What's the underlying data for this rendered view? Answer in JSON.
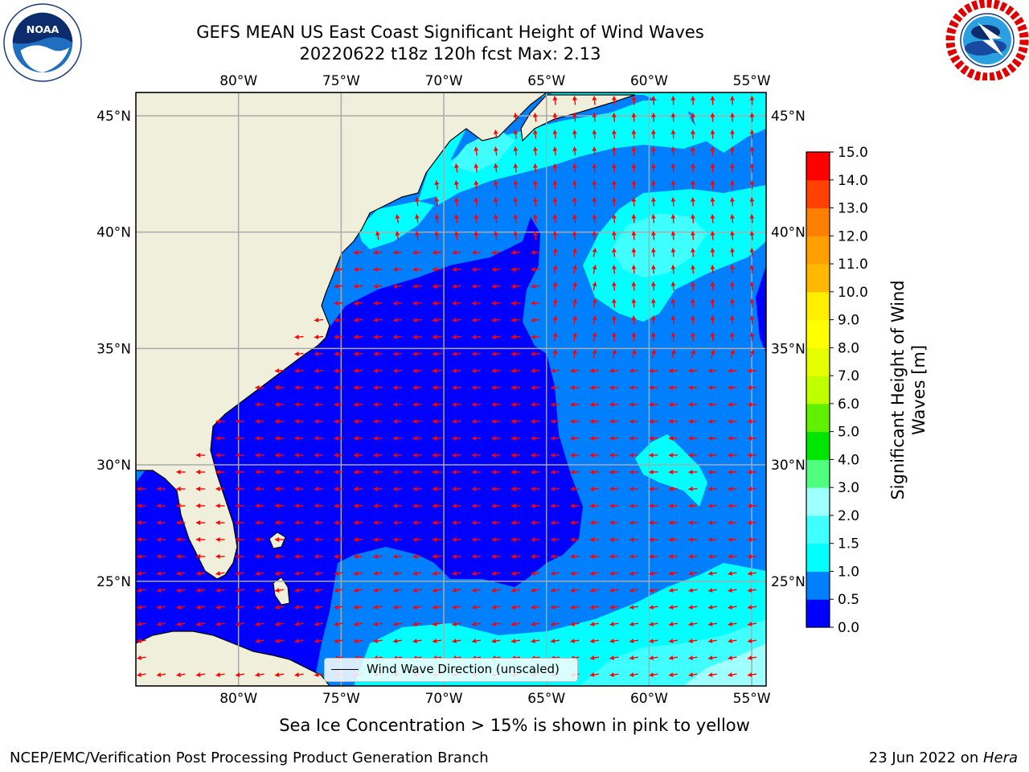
{
  "header": {
    "title_line1": "GEFS MEAN US East Coast Significant Height of Wind Waves",
    "title_line2": "20220622 t18z 120h fcst   Max: 2.13"
  },
  "logos": {
    "left": {
      "icon": "noaa-logo",
      "text": "NOAA",
      "ring_text": "NATIONAL OCEANIC AND ATMOSPHERIC ADMINISTRATION · U.S. DEPARTMENT OF COMMERCE"
    },
    "right": {
      "icon": "nws-logo",
      "ring_text": "NATIONAL WEATHER SERVICE"
    }
  },
  "map": {
    "lon_ticks_top": [
      "80°W",
      "75°W",
      "70°W",
      "65°W",
      "60°W",
      "55°W"
    ],
    "lon_ticks_bottom": [
      "80°W",
      "75°W",
      "70°W",
      "65°W",
      "60°W",
      "55°W"
    ],
    "lat_ticks_left": [
      "45°N",
      "40°N",
      "35°N",
      "30°N",
      "25°N"
    ],
    "lat_ticks_right": [
      "45°N",
      "40°N",
      "35°N",
      "30°N",
      "25°N"
    ],
    "lon_values": [
      -80,
      -75,
      -70,
      -65,
      -60,
      -55
    ],
    "lat_values": [
      45,
      40,
      35,
      30,
      25
    ],
    "extent": {
      "lon_min": -85,
      "lon_max": -54.3,
      "lat_min": 20.5,
      "lat_max": 46
    },
    "land_color": "#efefdc",
    "arrow_color": "#ff0000",
    "legend_text": "Wind Wave Direction (unscaled)"
  },
  "colorbar": {
    "title": "Significant Height of Wind Waves [m]",
    "tick_labels": [
      "15.0",
      "14.0",
      "13.0",
      "12.0",
      "11.0",
      "10.0",
      "9.0",
      "8.0",
      "7.0",
      "6.0",
      "5.0",
      "4.0",
      "3.0",
      "2.0",
      "1.5",
      "1.0",
      "0.5",
      "0.0"
    ],
    "bins": [
      {
        "from": 0.0,
        "to": 0.5,
        "color": "#0000ff"
      },
      {
        "from": 0.5,
        "to": 1.0,
        "color": "#0080ff"
      },
      {
        "from": 1.0,
        "to": 1.5,
        "color": "#00ffff"
      },
      {
        "from": 1.5,
        "to": 2.0,
        "color": "#40ffff"
      },
      {
        "from": 2.0,
        "to": 3.0,
        "color": "#a0ffff"
      },
      {
        "from": 3.0,
        "to": 4.0,
        "color": "#50ff80"
      },
      {
        "from": 4.0,
        "to": 5.0,
        "color": "#00e600"
      },
      {
        "from": 5.0,
        "to": 6.0,
        "color": "#60f000"
      },
      {
        "from": 6.0,
        "to": 7.0,
        "color": "#c0ff00"
      },
      {
        "from": 7.0,
        "to": 8.0,
        "color": "#e6ff00"
      },
      {
        "from": 8.0,
        "to": 9.0,
        "color": "#ffff00"
      },
      {
        "from": 9.0,
        "to": 10.0,
        "color": "#ffee00"
      },
      {
        "from": 10.0,
        "to": 11.0,
        "color": "#ffb800"
      },
      {
        "from": 11.0,
        "to": 12.0,
        "color": "#ffa000"
      },
      {
        "from": 12.0,
        "to": 13.0,
        "color": "#ff8000"
      },
      {
        "from": 13.0,
        "to": 14.0,
        "color": "#ff4000"
      },
      {
        "from": 14.0,
        "to": 15.0,
        "color": "#ff0000"
      }
    ]
  },
  "notes": {
    "sea_ice": "Sea Ice Concentration > 15% is shown in pink to yellow",
    "footer_left": "NCEP/EMC/Verification Post Processing Product Generation Branch",
    "footer_date": "23 Jun 2022 on ",
    "footer_machine": "Hera"
  }
}
